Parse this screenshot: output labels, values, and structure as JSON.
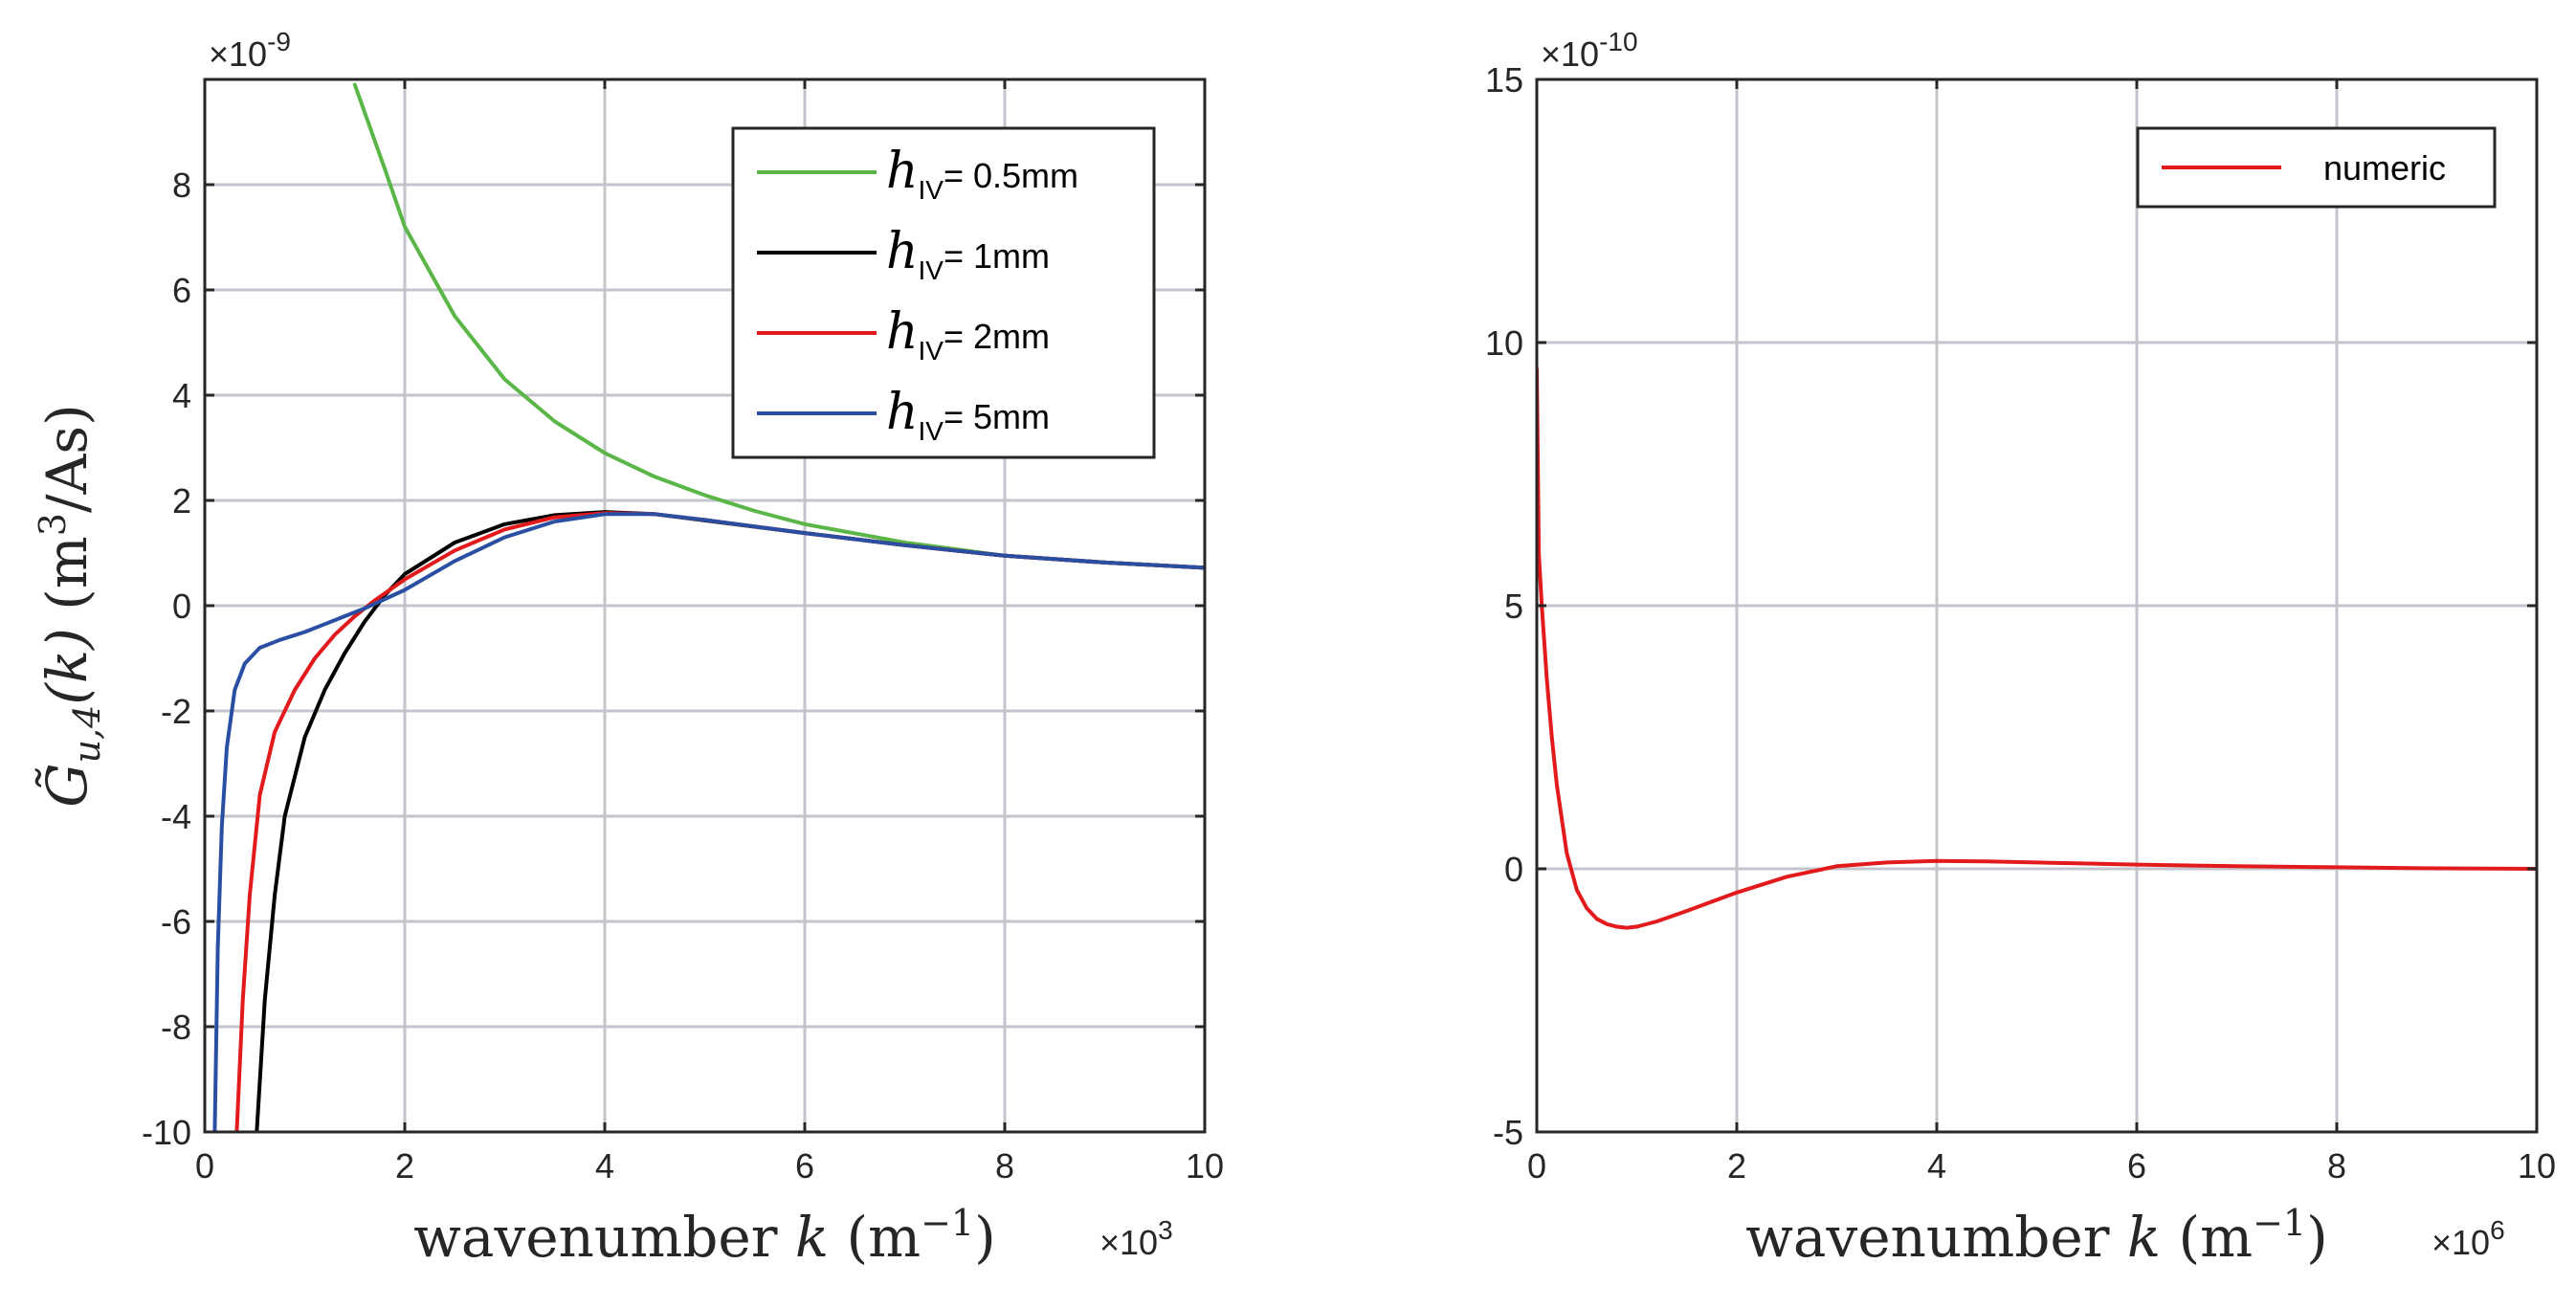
{
  "chart_data": [
    {
      "type": "line",
      "xlabel_prefix": "wavenumber",
      "xlabel_var": "k",
      "xlabel_units": "(m",
      "xlabel_exp": "−1",
      "xlabel_close": ")",
      "ylabel_var": "G̃",
      "ylabel_sub": "u,4",
      "ylabel_arg": "(k)",
      "ylabel_units": "(m",
      "ylabel_exp": "3",
      "ylabel_close": "/As)",
      "x_multiplier_base": "×10",
      "x_multiplier_exp": "3",
      "y_multiplier_base": "×10",
      "y_multiplier_exp": "-9",
      "xlim": [
        0,
        10
      ],
      "ylim": [
        -10,
        10
      ],
      "xticks": [
        0,
        2,
        4,
        6,
        8,
        10
      ],
      "yticks": [
        -10,
        -8,
        -6,
        -4,
        -2,
        0,
        2,
        4,
        6,
        8
      ],
      "grid": true,
      "legend_position": "top-right",
      "series": [
        {
          "name": "h_IV = 0.5mm",
          "legend_sym": "h",
          "legend_sub": "IV",
          "legend_text": "= 0.5mm",
          "color": "#5bb648",
          "x": [
            1.5,
            1.8,
            2.0,
            2.5,
            3.0,
            3.5,
            4.0,
            4.5,
            5.0,
            5.5,
            6.0,
            7.0,
            8.0,
            9.0,
            10.0
          ],
          "y": [
            9.9,
            8.3,
            7.2,
            5.5,
            4.3,
            3.5,
            2.9,
            2.45,
            2.1,
            1.8,
            1.55,
            1.2,
            0.95,
            0.82,
            0.72
          ]
        },
        {
          "name": "h_IV = 1mm",
          "legend_sym": "h",
          "legend_sub": "IV",
          "legend_text": "= 1mm",
          "color": "#000000",
          "x": [
            0.52,
            0.6,
            0.7,
            0.8,
            1.0,
            1.2,
            1.4,
            1.6,
            1.8,
            2.0,
            2.5,
            3.0,
            3.5,
            4.0,
            4.5,
            5.0,
            6.0,
            7.0,
            8.0,
            9.0,
            10.0
          ],
          "y": [
            -10,
            -7.5,
            -5.5,
            -4.0,
            -2.5,
            -1.6,
            -0.9,
            -0.3,
            0.2,
            0.6,
            1.2,
            1.55,
            1.72,
            1.78,
            1.74,
            1.62,
            1.38,
            1.15,
            0.95,
            0.82,
            0.72
          ]
        },
        {
          "name": "h_IV = 2mm",
          "legend_sym": "h",
          "legend_sub": "IV",
          "legend_text": "= 2mm",
          "color": "#e31a1c",
          "x": [
            0.32,
            0.38,
            0.45,
            0.55,
            0.7,
            0.9,
            1.1,
            1.3,
            1.5,
            1.7,
            2.0,
            2.5,
            3.0,
            3.5,
            4.0,
            4.5,
            5.0,
            6.0,
            7.0,
            8.0,
            9.0,
            10.0
          ],
          "y": [
            -10,
            -7.5,
            -5.5,
            -3.6,
            -2.4,
            -1.6,
            -1.0,
            -0.55,
            -0.2,
            0.1,
            0.5,
            1.05,
            1.45,
            1.68,
            1.76,
            1.74,
            1.63,
            1.38,
            1.15,
            0.95,
            0.82,
            0.72
          ]
        },
        {
          "name": "h_IV = 5mm",
          "legend_sym": "h",
          "legend_sub": "IV",
          "legend_text": "= 5mm",
          "color": "#2a4ea2",
          "x": [
            0.1,
            0.13,
            0.17,
            0.22,
            0.3,
            0.4,
            0.55,
            0.75,
            1.0,
            1.2,
            1.4,
            1.6,
            2.0,
            2.5,
            3.0,
            3.5,
            4.0,
            4.5,
            5.0,
            6.0,
            7.0,
            8.0,
            9.0,
            10.0
          ],
          "y": [
            -10,
            -6.5,
            -4.2,
            -2.7,
            -1.6,
            -1.1,
            -0.8,
            -0.65,
            -0.5,
            -0.35,
            -0.2,
            -0.05,
            0.3,
            0.85,
            1.3,
            1.6,
            1.74,
            1.74,
            1.63,
            1.38,
            1.15,
            0.95,
            0.82,
            0.72
          ]
        }
      ]
    },
    {
      "type": "line",
      "xlabel_prefix": "wavenumber",
      "xlabel_var": "k",
      "xlabel_units": "(m",
      "xlabel_exp": "−1",
      "xlabel_close": ")",
      "x_multiplier_base": "×10",
      "x_multiplier_exp": "6",
      "y_multiplier_base": "×10",
      "y_multiplier_exp": "-10",
      "xlim": [
        0,
        10
      ],
      "ylim": [
        -5,
        15
      ],
      "xticks": [
        0,
        2,
        4,
        6,
        8,
        10
      ],
      "yticks": [
        -5,
        0,
        5,
        10,
        15
      ],
      "grid": true,
      "legend_position": "top-right",
      "series": [
        {
          "name": "numeric",
          "legend_text": "numeric",
          "color": "#e31a1c",
          "x": [
            0.0,
            0.02,
            0.05,
            0.1,
            0.15,
            0.2,
            0.3,
            0.4,
            0.5,
            0.6,
            0.7,
            0.8,
            0.9,
            1.0,
            1.2,
            1.5,
            2.0,
            2.5,
            3.0,
            3.5,
            4.0,
            4.5,
            5.0,
            6.0,
            7.0,
            8.0,
            9.0,
            10.0
          ],
          "y": [
            9.5,
            6.0,
            5.0,
            3.6,
            2.5,
            1.6,
            0.3,
            -0.4,
            -0.75,
            -0.95,
            -1.05,
            -1.1,
            -1.12,
            -1.1,
            -1.0,
            -0.8,
            -0.45,
            -0.15,
            0.05,
            0.12,
            0.15,
            0.14,
            0.12,
            0.08,
            0.05,
            0.03,
            0.01,
            0.0
          ]
        }
      ]
    }
  ]
}
